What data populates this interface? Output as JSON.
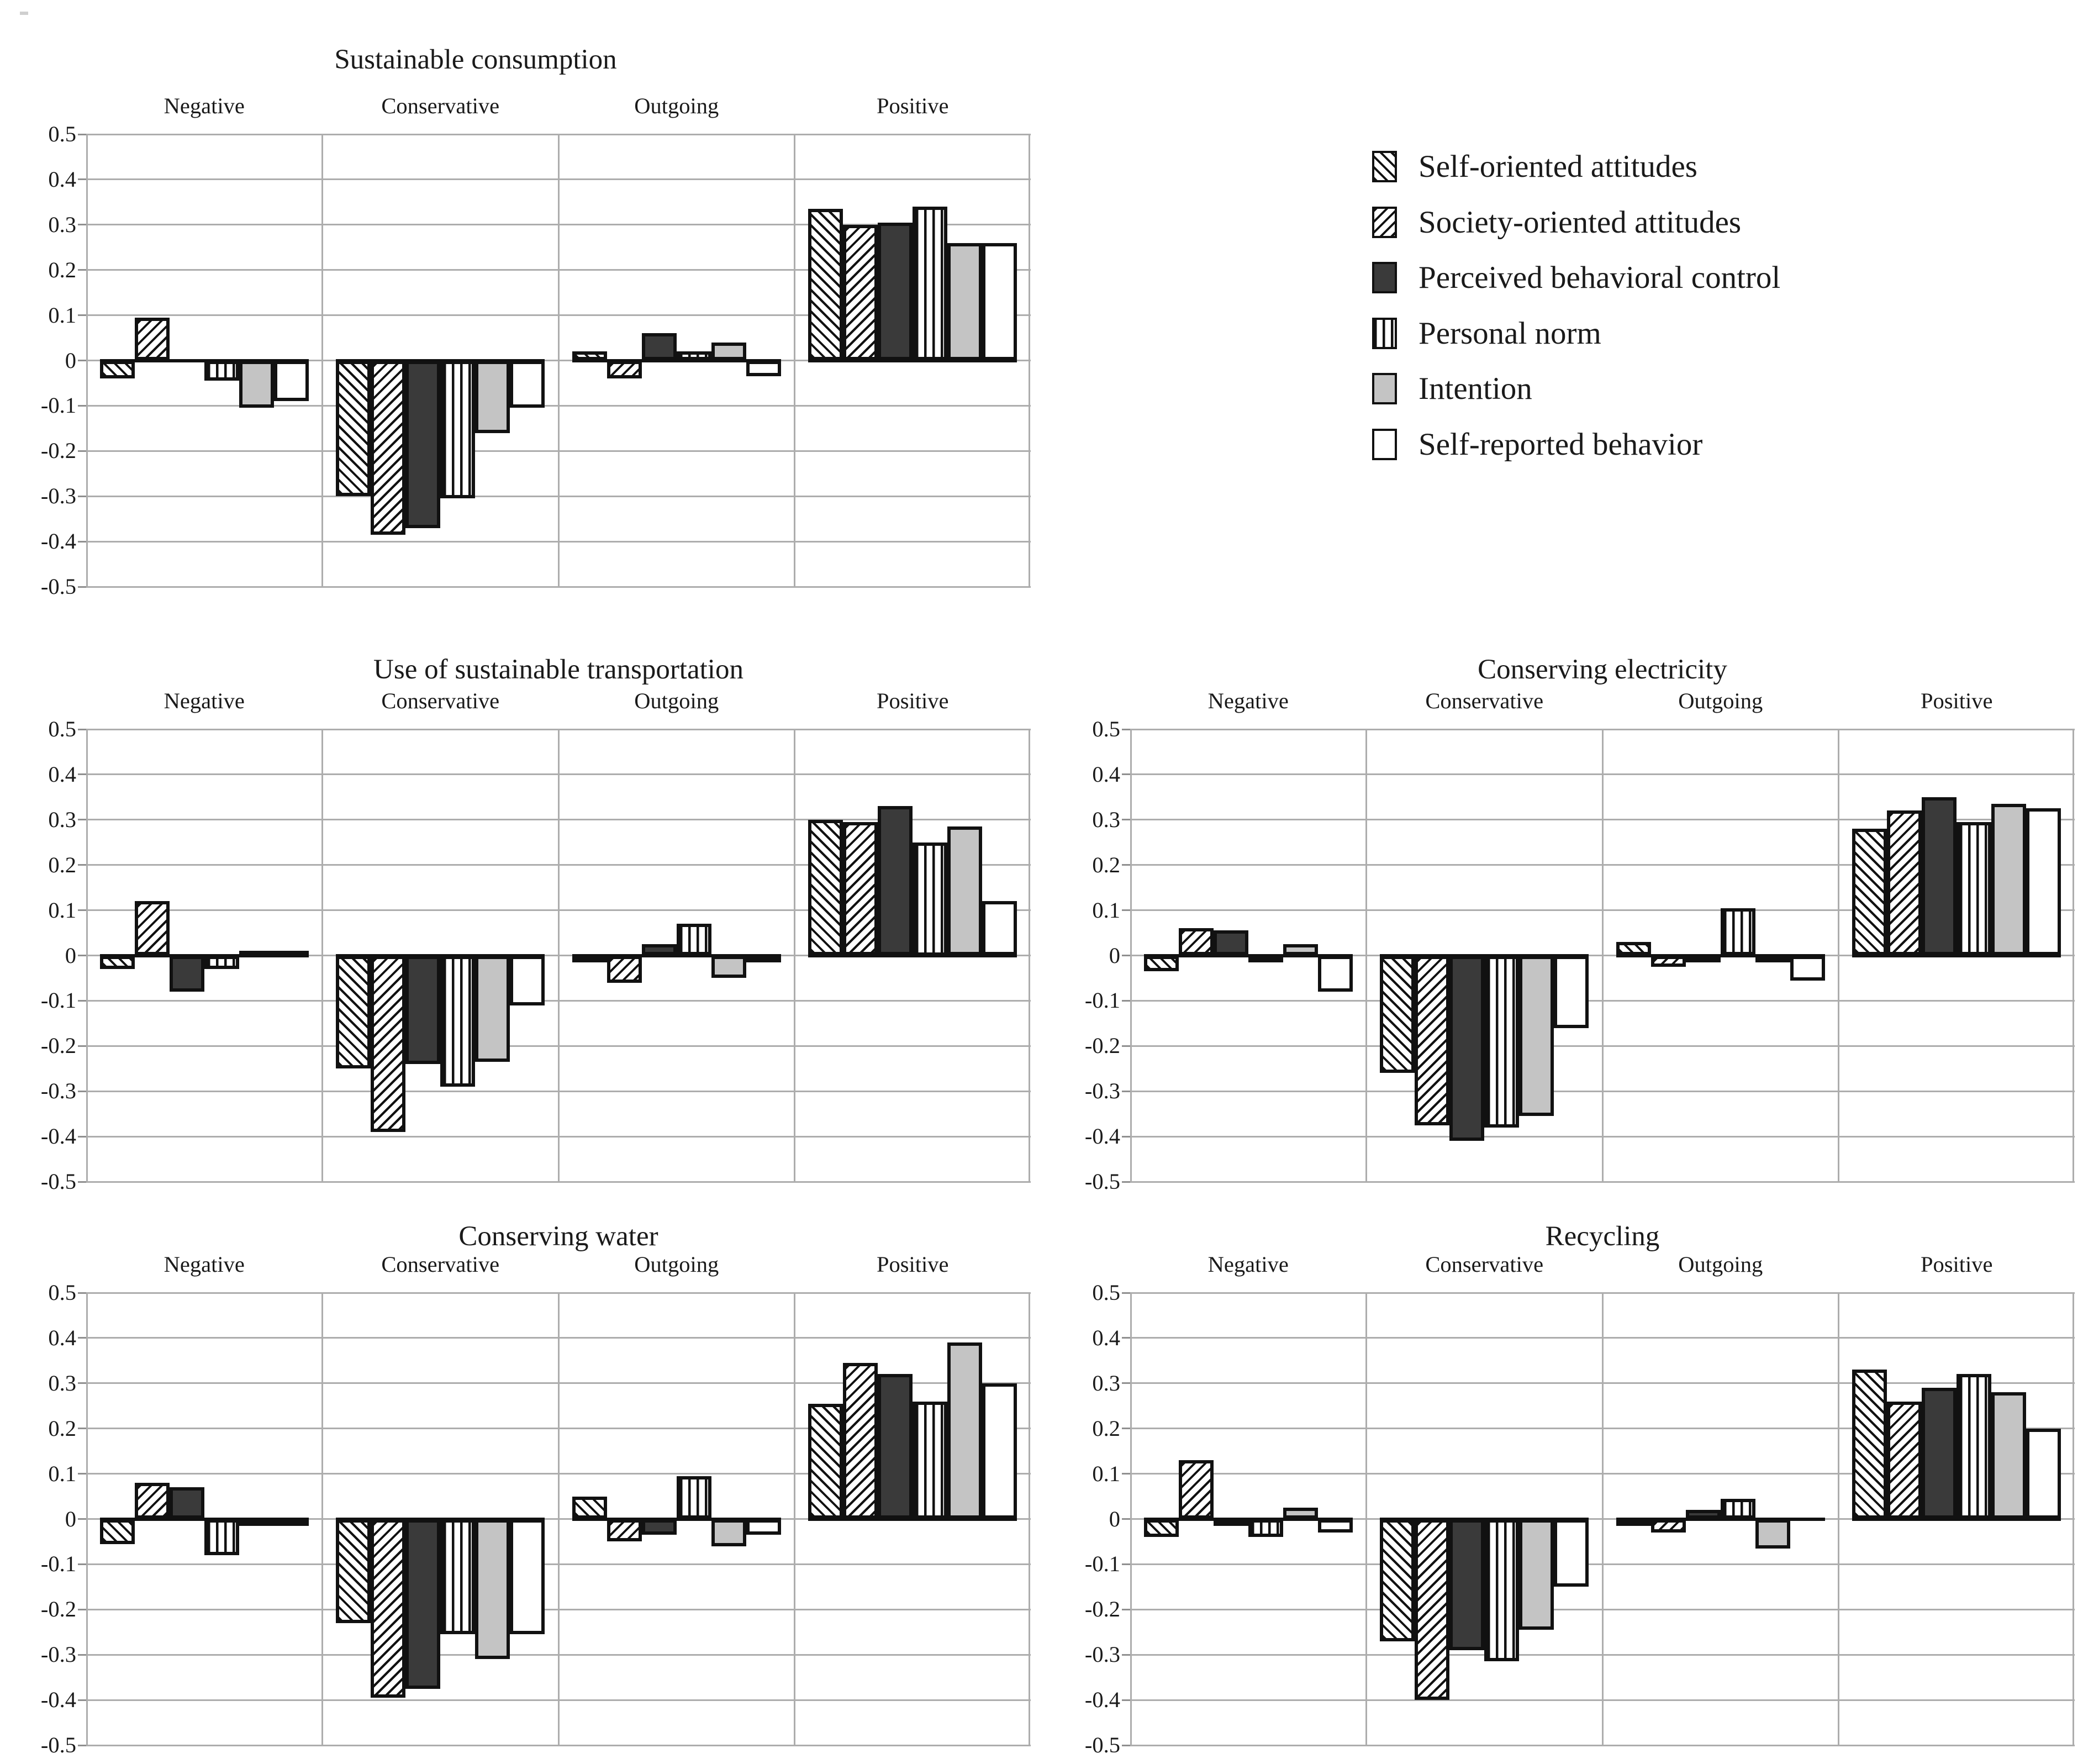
{
  "legend": {
    "items": [
      {
        "label": "Self-oriented attitudes",
        "pattern": "diagonal-down"
      },
      {
        "label": "Society-oriented attitudes",
        "pattern": "diagonal-up"
      },
      {
        "label": "Perceived behavioral control",
        "pattern": "solid-dark",
        "color": "#3a3a3a"
      },
      {
        "label": "Personal norm",
        "pattern": "vertical-stripes"
      },
      {
        "label": "Intention",
        "pattern": "solid-light",
        "color": "#c4c4c4"
      },
      {
        "label": "Self-reported behavior",
        "pattern": "white",
        "color": "#ffffff"
      }
    ],
    "position": "top-right"
  },
  "axes": {
    "ymin": -0.5,
    "ymax": 0.5,
    "step": 0.1,
    "tick_labels": [
      "0.5",
      "0.4",
      "0.3",
      "0.2",
      "0.1",
      "0",
      "-0.1",
      "-0.2",
      "-0.3",
      "-0.4",
      "-0.5"
    ],
    "grid": true,
    "gridline_color": "#adadad"
  },
  "chart_data": [
    {
      "type": "bar",
      "title": "Sustainable consumption",
      "categories": [
        "Negative",
        "Conservative",
        "Outgoing",
        "Positive"
      ],
      "ylim": [
        -0.5,
        0.5
      ],
      "series": [
        {
          "name": "Self-oriented attitudes",
          "pattern": "diagonal-down",
          "values": [
            -0.04,
            -0.3,
            0.02,
            0.335
          ]
        },
        {
          "name": "Society-oriented attitudes",
          "pattern": "diagonal-up",
          "values": [
            0.095,
            -0.385,
            -0.04,
            0.3
          ]
        },
        {
          "name": "Perceived behavioral control",
          "pattern": "solid-dark",
          "values": [
            0.0,
            -0.37,
            0.06,
            0.305
          ]
        },
        {
          "name": "Personal norm",
          "pattern": "vertical-stripes",
          "values": [
            -0.045,
            -0.305,
            0.02,
            0.34
          ]
        },
        {
          "name": "Intention",
          "pattern": "solid-light",
          "values": [
            -0.105,
            -0.16,
            0.04,
            0.26
          ]
        },
        {
          "name": "Self-reported behavior",
          "pattern": "white",
          "values": [
            -0.09,
            -0.105,
            -0.035,
            0.26
          ]
        }
      ]
    },
    {
      "type": "bar",
      "title": "Use of sustainable transportation",
      "categories": [
        "Negative",
        "Conservative",
        "Outgoing",
        "Positive"
      ],
      "ylim": [
        -0.5,
        0.5
      ],
      "series": [
        {
          "name": "Self-oriented attitudes",
          "pattern": "diagonal-down",
          "values": [
            -0.03,
            -0.25,
            -0.01,
            0.3
          ]
        },
        {
          "name": "Society-oriented attitudes",
          "pattern": "diagonal-up",
          "values": [
            0.12,
            -0.39,
            -0.06,
            0.295
          ]
        },
        {
          "name": "Perceived behavioral control",
          "pattern": "solid-dark",
          "values": [
            -0.08,
            -0.24,
            0.025,
            0.33
          ]
        },
        {
          "name": "Personal norm",
          "pattern": "vertical-stripes",
          "values": [
            -0.03,
            -0.29,
            0.07,
            0.25
          ]
        },
        {
          "name": "Intention",
          "pattern": "solid-light",
          "values": [
            0.005,
            -0.235,
            -0.05,
            0.285
          ]
        },
        {
          "name": "Self-reported behavior",
          "pattern": "white",
          "values": [
            0.01,
            -0.11,
            -0.015,
            0.12
          ]
        }
      ]
    },
    {
      "type": "bar",
      "title": "Conserving electricity",
      "categories": [
        "Negative",
        "Conservative",
        "Outgoing",
        "Positive"
      ],
      "ylim": [
        -0.5,
        0.5
      ],
      "series": [
        {
          "name": "Self-oriented attitudes",
          "pattern": "diagonal-down",
          "values": [
            -0.035,
            -0.26,
            0.03,
            0.28
          ]
        },
        {
          "name": "Society-oriented attitudes",
          "pattern": "diagonal-up",
          "values": [
            0.06,
            -0.375,
            -0.025,
            0.32
          ]
        },
        {
          "name": "Perceived behavioral control",
          "pattern": "solid-dark",
          "values": [
            0.055,
            -0.41,
            -0.01,
            0.35
          ]
        },
        {
          "name": "Personal norm",
          "pattern": "vertical-stripes",
          "values": [
            -0.015,
            -0.38,
            0.105,
            0.295
          ]
        },
        {
          "name": "Intention",
          "pattern": "solid-light",
          "values": [
            0.025,
            -0.355,
            -0.01,
            0.335
          ]
        },
        {
          "name": "Self-reported behavior",
          "pattern": "white",
          "values": [
            -0.08,
            -0.16,
            -0.055,
            0.325
          ]
        }
      ]
    },
    {
      "type": "bar",
      "title": "Conserving water",
      "categories": [
        "Negative",
        "Conservative",
        "Outgoing",
        "Positive"
      ],
      "ylim": [
        -0.5,
        0.5
      ],
      "series": [
        {
          "name": "Self-oriented attitudes",
          "pattern": "diagonal-down",
          "values": [
            -0.055,
            -0.23,
            0.05,
            0.255
          ]
        },
        {
          "name": "Society-oriented attitudes",
          "pattern": "diagonal-up",
          "values": [
            0.08,
            -0.395,
            -0.05,
            0.345
          ]
        },
        {
          "name": "Perceived behavioral control",
          "pattern": "solid-dark",
          "values": [
            0.07,
            -0.375,
            -0.035,
            0.32
          ]
        },
        {
          "name": "Personal norm",
          "pattern": "vertical-stripes",
          "values": [
            -0.08,
            -0.255,
            0.095,
            0.26
          ]
        },
        {
          "name": "Intention",
          "pattern": "solid-light",
          "values": [
            -0.01,
            -0.31,
            -0.06,
            0.39
          ]
        },
        {
          "name": "Self-reported behavior",
          "pattern": "white",
          "values": [
            -0.005,
            -0.255,
            -0.035,
            0.3
          ]
        }
      ]
    },
    {
      "type": "bar",
      "title": "Recycling",
      "categories": [
        "Negative",
        "Conservative",
        "Outgoing",
        "Positive"
      ],
      "ylim": [
        -0.5,
        0.5
      ],
      "series": [
        {
          "name": "Self-oriented attitudes",
          "pattern": "diagonal-down",
          "values": [
            -0.04,
            -0.27,
            -0.01,
            0.33
          ]
        },
        {
          "name": "Society-oriented attitudes",
          "pattern": "diagonal-up",
          "values": [
            0.13,
            -0.4,
            -0.03,
            0.26
          ]
        },
        {
          "name": "Perceived behavioral control",
          "pattern": "solid-dark",
          "values": [
            -0.01,
            -0.29,
            0.02,
            0.29
          ]
        },
        {
          "name": "Personal norm",
          "pattern": "vertical-stripes",
          "values": [
            -0.04,
            -0.315,
            0.045,
            0.32
          ]
        },
        {
          "name": "Intention",
          "pattern": "solid-light",
          "values": [
            0.025,
            -0.245,
            -0.065,
            0.28
          ]
        },
        {
          "name": "Self-reported behavior",
          "pattern": "white",
          "values": [
            -0.03,
            -0.15,
            0.0,
            0.2
          ]
        }
      ]
    }
  ]
}
